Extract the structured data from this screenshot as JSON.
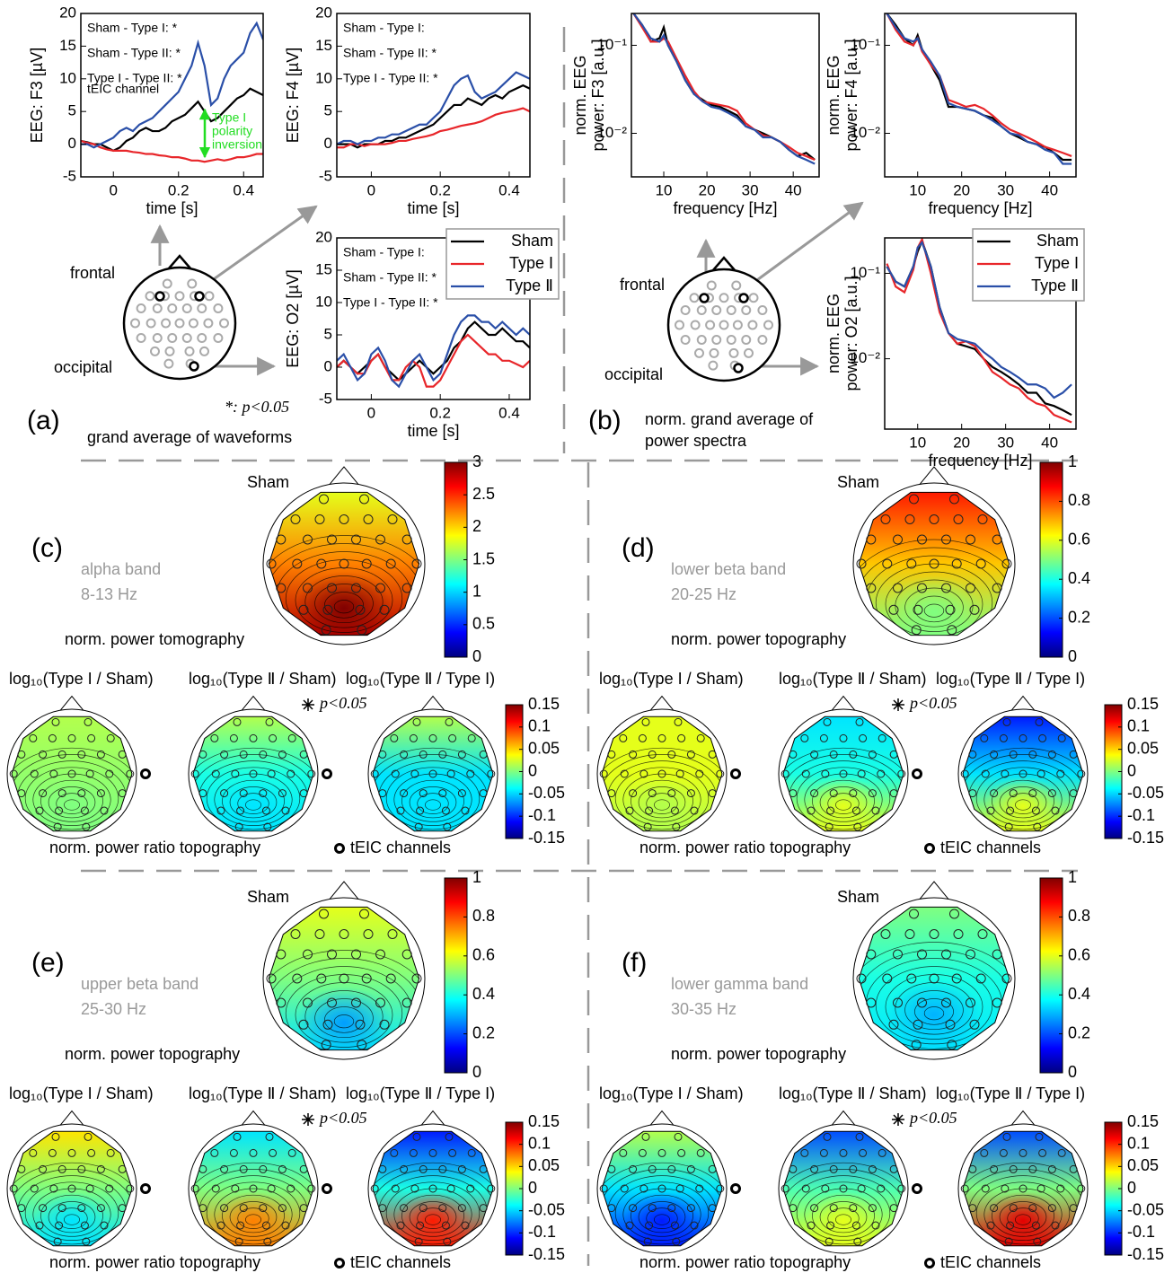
{
  "chart_data": [
    {
      "type": "line",
      "y_label": "EEG: F3 [µV]",
      "x_label": "time [s]",
      "xlim": [
        -0.1,
        0.46
      ],
      "ylim": [
        -5,
        20
      ],
      "xticks": [
        0,
        0.2,
        0.4
      ],
      "yticks": [
        -5,
        0,
        5,
        10,
        15,
        20
      ],
      "annotations": [
        "Sham - Type I: *",
        "Sham - Type II: *",
        "Type I - Type II: *"
      ],
      "channel_label": "tEIC channel",
      "callout": [
        "Type I",
        "polarity",
        "inversion"
      ],
      "callout_color": "#22dd22",
      "legend": false,
      "x": [
        -0.1,
        -0.08,
        -0.06,
        -0.04,
        -0.02,
        0,
        0.02,
        0.04,
        0.06,
        0.08,
        0.1,
        0.12,
        0.14,
        0.16,
        0.18,
        0.2,
        0.22,
        0.24,
        0.26,
        0.28,
        0.3,
        0.32,
        0.34,
        0.36,
        0.38,
        0.4,
        0.42,
        0.44,
        0.46
      ],
      "series": [
        {
          "color": "#000000",
          "values": [
            0.5,
            0.3,
            0,
            0,
            -0.5,
            -1,
            -0.5,
            0.5,
            1,
            2,
            2.5,
            2,
            2,
            2.5,
            3.5,
            4,
            4.5,
            5.5,
            6.5,
            5,
            3.5,
            4,
            5,
            6,
            7,
            7.5,
            8.5,
            8,
            7.5
          ]
        },
        {
          "color": "#e8262a",
          "values": [
            0.5,
            0.2,
            0,
            -0.5,
            -0.8,
            -1,
            -1,
            -1,
            -1.2,
            -1.3,
            -1.5,
            -1.5,
            -1.7,
            -1.8,
            -2,
            -2,
            -2.2,
            -2.5,
            -2.5,
            -2.7,
            -2.5,
            -2.3,
            -2.5,
            -2.3,
            -2,
            -2,
            -1.8,
            -1.5,
            -1.5
          ]
        },
        {
          "color": "#2a4fa8",
          "values": [
            0,
            0,
            -0.5,
            0,
            0.5,
            1,
            2,
            2.5,
            2,
            3,
            3.5,
            4,
            5,
            6,
            7,
            8,
            10,
            12,
            15.5,
            12,
            6,
            7,
            10,
            12,
            13,
            14,
            17,
            18.5,
            16
          ]
        }
      ]
    },
    {
      "type": "line",
      "y_label": "EEG: F4 [µV]",
      "x_label": "time [s]",
      "xlim": [
        -0.1,
        0.46
      ],
      "ylim": [
        -5,
        20
      ],
      "xticks": [
        0,
        0.2,
        0.4
      ],
      "yticks": [
        -5,
        0,
        5,
        10,
        15,
        20
      ],
      "annotations": [
        "Sham - Type I:",
        "Sham - Type II: *",
        "Type I - Type II: *"
      ],
      "legend": false,
      "x": [
        -0.1,
        -0.08,
        -0.06,
        -0.04,
        -0.02,
        0,
        0.02,
        0.04,
        0.06,
        0.08,
        0.1,
        0.12,
        0.14,
        0.16,
        0.18,
        0.2,
        0.22,
        0.24,
        0.26,
        0.28,
        0.3,
        0.32,
        0.34,
        0.36,
        0.38,
        0.4,
        0.42,
        0.44,
        0.46
      ],
      "series": [
        {
          "color": "#000000",
          "values": [
            0,
            0,
            0,
            -0.5,
            0,
            0,
            0,
            0.5,
            0.5,
            1,
            1,
            1.5,
            2,
            2.5,
            3,
            4,
            5,
            6,
            6,
            7,
            6.5,
            6,
            7,
            7.5,
            7,
            8,
            8.5,
            9,
            8.5
          ]
        },
        {
          "color": "#e8262a",
          "values": [
            -0.5,
            -0.5,
            0,
            0,
            -0.3,
            0,
            0,
            0,
            0.2,
            0.5,
            0.5,
            0.8,
            1,
            1.2,
            1.5,
            2,
            2.2,
            2.5,
            2.8,
            3,
            3.2,
            3.5,
            4,
            4.5,
            4.8,
            5,
            5.2,
            5.5,
            5
          ]
        },
        {
          "color": "#2a4fa8",
          "values": [
            0,
            0.5,
            0.5,
            0,
            0.5,
            0.5,
            1,
            1,
            1.5,
            1.5,
            2,
            2.5,
            3,
            3,
            4,
            5,
            7,
            9,
            10,
            10.5,
            8,
            7,
            7.5,
            8,
            9,
            10,
            11,
            10.5,
            10
          ]
        }
      ]
    },
    {
      "type": "line",
      "y_label": "EEG: O2 [µV]",
      "x_label": "time [s]",
      "xlim": [
        -0.1,
        0.46
      ],
      "ylim": [
        -5,
        20
      ],
      "xticks": [
        0,
        0.2,
        0.4
      ],
      "yticks": [
        -5,
        0,
        5,
        10,
        15,
        20
      ],
      "annotations": [
        "Sham - Type I:",
        "Sham - Type II: *",
        "Type I - Type II: *"
      ],
      "legend": true,
      "x": [
        -0.1,
        -0.08,
        -0.06,
        -0.04,
        -0.02,
        0,
        0.02,
        0.04,
        0.06,
        0.08,
        0.1,
        0.12,
        0.14,
        0.16,
        0.18,
        0.2,
        0.22,
        0.24,
        0.26,
        0.28,
        0.3,
        0.32,
        0.34,
        0.36,
        0.38,
        0.4,
        0.42,
        0.44,
        0.46
      ],
      "series": [
        {
          "name": "Sham",
          "color": "#000000",
          "values": [
            0,
            1,
            0,
            -1,
            0,
            1,
            2,
            0,
            -1,
            -2,
            -1,
            0,
            1,
            0,
            -1,
            0,
            1,
            3,
            4,
            6,
            7,
            6,
            5,
            5,
            6,
            5,
            4,
            4,
            3
          ]
        },
        {
          "name": "Type I",
          "color": "#e8262a",
          "values": [
            0,
            1,
            0,
            -1,
            -1,
            1,
            2,
            0,
            -2,
            -2,
            0,
            1,
            0,
            -3,
            -3,
            -2,
            0,
            2,
            4,
            5,
            4,
            3,
            2,
            2,
            1,
            1,
            0.5,
            0,
            1
          ]
        },
        {
          "name": "Type Ⅱ",
          "color": "#2a4fa8",
          "values": [
            1,
            2,
            0,
            -2,
            -1,
            2,
            3,
            1,
            -2,
            -3,
            -1,
            1,
            2,
            0,
            -2,
            -1,
            2,
            5,
            7,
            8,
            8,
            7,
            7,
            6,
            7,
            6,
            5,
            6,
            5
          ]
        }
      ]
    },
    {
      "type": "line",
      "log_y": true,
      "y_label": [
        "norm. EEG",
        "power: F3 [a.u.]"
      ],
      "x_label": "frequency [Hz]",
      "xlim": [
        2.5,
        46
      ],
      "ylim": [
        0.0032,
        0.23
      ],
      "xticks": [
        10,
        20,
        30,
        40
      ],
      "yticks": [
        {
          "value": 0.01,
          "label": "10⁻²"
        },
        {
          "value": 0.1,
          "label": "10⁻¹"
        }
      ],
      "legend": false,
      "x": [
        3,
        5,
        7,
        9,
        10,
        11,
        13,
        15,
        17,
        19,
        21,
        23,
        25,
        27,
        29,
        31,
        33,
        35,
        37,
        39,
        41,
        43,
        45
      ],
      "series": [
        {
          "color": "#000000",
          "values": [
            0.23,
            0.17,
            0.11,
            0.12,
            0.16,
            0.1,
            0.065,
            0.04,
            0.028,
            0.024,
            0.021,
            0.02,
            0.018,
            0.016,
            0.012,
            0.011,
            0.01,
            0.009,
            0.008,
            0.0065,
            0.0055,
            0.006,
            0.005
          ]
        },
        {
          "color": "#e8262a",
          "values": [
            0.23,
            0.16,
            0.11,
            0.11,
            0.12,
            0.11,
            0.07,
            0.045,
            0.03,
            0.023,
            0.022,
            0.021,
            0.02,
            0.018,
            0.013,
            0.011,
            0.0095,
            0.009,
            0.008,
            0.007,
            0.006,
            0.0055,
            0.005
          ]
        },
        {
          "color": "#2a4fa8",
          "values": [
            0.23,
            0.17,
            0.12,
            0.11,
            0.13,
            0.1,
            0.065,
            0.04,
            0.028,
            0.023,
            0.02,
            0.019,
            0.017,
            0.015,
            0.012,
            0.011,
            0.009,
            0.009,
            0.008,
            0.0065,
            0.0055,
            0.005,
            0.0045
          ]
        }
      ]
    },
    {
      "type": "line",
      "log_y": true,
      "y_label": [
        "norm. EEG",
        "power: F4 [a.u.]"
      ],
      "x_label": "frequency [Hz]",
      "xlim": [
        2.5,
        46
      ],
      "ylim": [
        0.0032,
        0.23
      ],
      "xticks": [
        10,
        20,
        30,
        40
      ],
      "yticks": [
        {
          "value": 0.01,
          "label": "10⁻²"
        },
        {
          "value": 0.1,
          "label": "10⁻¹"
        }
      ],
      "legend": false,
      "x": [
        3,
        5,
        7,
        9,
        10,
        11,
        13,
        15,
        17,
        19,
        21,
        23,
        25,
        27,
        29,
        31,
        33,
        35,
        37,
        39,
        41,
        43,
        45
      ],
      "series": [
        {
          "color": "#000000",
          "values": [
            0.23,
            0.17,
            0.12,
            0.1,
            0.13,
            0.09,
            0.06,
            0.04,
            0.02,
            0.02,
            0.019,
            0.018,
            0.016,
            0.015,
            0.012,
            0.01,
            0.009,
            0.008,
            0.0075,
            0.007,
            0.006,
            0.005,
            0.005
          ]
        },
        {
          "color": "#e8262a",
          "values": [
            0.23,
            0.15,
            0.11,
            0.1,
            0.12,
            0.085,
            0.06,
            0.045,
            0.024,
            0.022,
            0.02,
            0.021,
            0.019,
            0.016,
            0.013,
            0.011,
            0.01,
            0.009,
            0.008,
            0.007,
            0.0065,
            0.006,
            0.0055
          ]
        },
        {
          "color": "#2a4fa8",
          "values": [
            0.23,
            0.16,
            0.12,
            0.11,
            0.12,
            0.09,
            0.065,
            0.045,
            0.022,
            0.02,
            0.019,
            0.018,
            0.016,
            0.014,
            0.012,
            0.01,
            0.0095,
            0.008,
            0.0075,
            0.0065,
            0.006,
            0.0045,
            0.0045
          ]
        }
      ]
    },
    {
      "type": "line",
      "log_y": true,
      "y_label": [
        "norm. EEG",
        "power: O2 [a.u.]"
      ],
      "x_label": "frequency [Hz]",
      "xlim": [
        2.5,
        46
      ],
      "ylim": [
        0.0015,
        0.26
      ],
      "xticks": [
        10,
        20,
        30,
        40
      ],
      "yticks": [
        {
          "value": 0.01,
          "label": "10⁻²"
        },
        {
          "value": 0.1,
          "label": "10⁻¹"
        }
      ],
      "legend": true,
      "x": [
        3,
        5,
        7,
        9,
        10,
        11,
        13,
        15,
        17,
        19,
        21,
        23,
        25,
        27,
        29,
        31,
        33,
        35,
        37,
        39,
        41,
        43,
        45
      ],
      "series": [
        {
          "name": "Sham",
          "color": "#000000",
          "values": [
            0.12,
            0.08,
            0.07,
            0.12,
            0.18,
            0.24,
            0.12,
            0.04,
            0.02,
            0.015,
            0.014,
            0.013,
            0.01,
            0.008,
            0.007,
            0.006,
            0.005,
            0.004,
            0.004,
            0.003,
            0.0028,
            0.0025,
            0.0022
          ]
        },
        {
          "name": "Type I",
          "color": "#e8262a",
          "values": [
            0.13,
            0.07,
            0.06,
            0.11,
            0.2,
            0.25,
            0.1,
            0.035,
            0.02,
            0.015,
            0.016,
            0.014,
            0.01,
            0.007,
            0.006,
            0.005,
            0.0045,
            0.0035,
            0.003,
            0.0028,
            0.0022,
            0.002,
            0.0018
          ]
        },
        {
          "name": "Type Ⅱ",
          "color": "#2a4fa8",
          "values": [
            0.12,
            0.08,
            0.07,
            0.12,
            0.2,
            0.23,
            0.12,
            0.04,
            0.02,
            0.017,
            0.016,
            0.015,
            0.012,
            0.01,
            0.008,
            0.007,
            0.006,
            0.005,
            0.005,
            0.0045,
            0.0035,
            0.004,
            0.005
          ]
        }
      ]
    },
    {
      "type": "colorbar",
      "colormap": "jet",
      "ylim": [
        0,
        3
      ],
      "yticks": [
        0,
        0.5,
        1,
        1.5,
        2,
        2.5,
        3
      ]
    },
    {
      "type": "colorbar",
      "colormap": "jet",
      "ylim": [
        -0.15,
        0.15
      ],
      "yticks": [
        -0.15,
        -0.1,
        -0.05,
        0,
        0.05,
        0.1,
        0.15
      ]
    },
    {
      "type": "colorbar",
      "colormap": "jet",
      "ylim": [
        0,
        1
      ],
      "yticks": [
        0,
        0.2,
        0.4,
        0.6,
        0.8,
        1
      ]
    },
    {
      "type": "colorbar",
      "colormap": "jet",
      "ylim": [
        -0.15,
        0.15
      ],
      "yticks": [
        -0.15,
        -0.1,
        -0.05,
        0,
        0.05,
        0.1,
        0.15
      ]
    },
    {
      "type": "colorbar",
      "colormap": "jet",
      "ylim": [
        0,
        1
      ],
      "yticks": [
        0,
        0.2,
        0.4,
        0.6,
        0.8,
        1
      ]
    },
    {
      "type": "colorbar",
      "colormap": "jet",
      "ylim": [
        -0.15,
        0.15
      ],
      "yticks": [
        -0.15,
        -0.1,
        -0.05,
        0,
        0.05,
        0.1,
        0.15
      ]
    },
    {
      "type": "colorbar",
      "colormap": "jet",
      "ylim": [
        0,
        1
      ],
      "yticks": [
        0,
        0.2,
        0.4,
        0.6,
        0.8,
        1
      ]
    },
    {
      "type": "colorbar",
      "colormap": "jet",
      "ylim": [
        -0.15,
        0.15
      ],
      "yticks": [
        -0.15,
        -0.1,
        -0.05,
        0,
        0.05,
        0.1,
        0.15
      ]
    }
  ],
  "panels": {
    "a": {
      "label": "(a)",
      "caption": "grand average of waveforms",
      "frontal": "frontal",
      "occipital": "occipital",
      "significance": "*: p<0.05"
    },
    "b": {
      "label": "(b)",
      "caption": [
        "norm. grand average of",
        "power spectra"
      ],
      "frontal": "frontal",
      "occipital": "occipital"
    },
    "c": {
      "label": "(c)",
      "band": "alpha band",
      "range": "8-13 Hz",
      "reference": "Sham",
      "main_caption": "norm. power tomography",
      "ratio_titles": [
        "log₁₀(Type I / Sham)",
        "log₁₀(Type Ⅱ / Sham)",
        "log₁₀(Type Ⅱ / Type I)"
      ],
      "significance": "p<0.05",
      "ratio_caption": "norm. power ratio topography",
      "channel_caption": "tEIC channels"
    },
    "d": {
      "label": "(d)",
      "band": "lower beta band",
      "range": "20-25 Hz",
      "reference": "Sham",
      "main_caption": "norm. power topography",
      "ratio_titles": [
        "log₁₀(Type I / Sham)",
        "log₁₀(Type Ⅱ / Sham)",
        "log₁₀(Type Ⅱ / Type I)"
      ],
      "significance": "p<0.05",
      "ratio_caption": "norm. power ratio topography",
      "channel_caption": "tEIC channels"
    },
    "e": {
      "label": "(e)",
      "band": "upper beta band",
      "range": "25-30 Hz",
      "reference": "Sham",
      "main_caption": "norm. power topography",
      "ratio_titles": [
        "log₁₀(Type I / Sham)",
        "log₁₀(Type Ⅱ / Sham)",
        "log₁₀(Type Ⅱ / Type I)"
      ],
      "significance": "p<0.05",
      "ratio_caption": "norm. power ratio topography",
      "channel_caption": "tEIC channels"
    },
    "f": {
      "label": "(f)",
      "band": "lower gamma band",
      "range": "30-35 Hz",
      "reference": "Sham",
      "main_caption": "norm. power topography",
      "ratio_titles": [
        "log₁₀(Type I / Sham)",
        "log₁₀(Type Ⅱ / Sham)",
        "log₁₀(Type Ⅱ / Type I)"
      ],
      "significance": "p<0.05",
      "ratio_caption": "norm. power ratio topography",
      "channel_caption": "tEIC channels"
    }
  }
}
